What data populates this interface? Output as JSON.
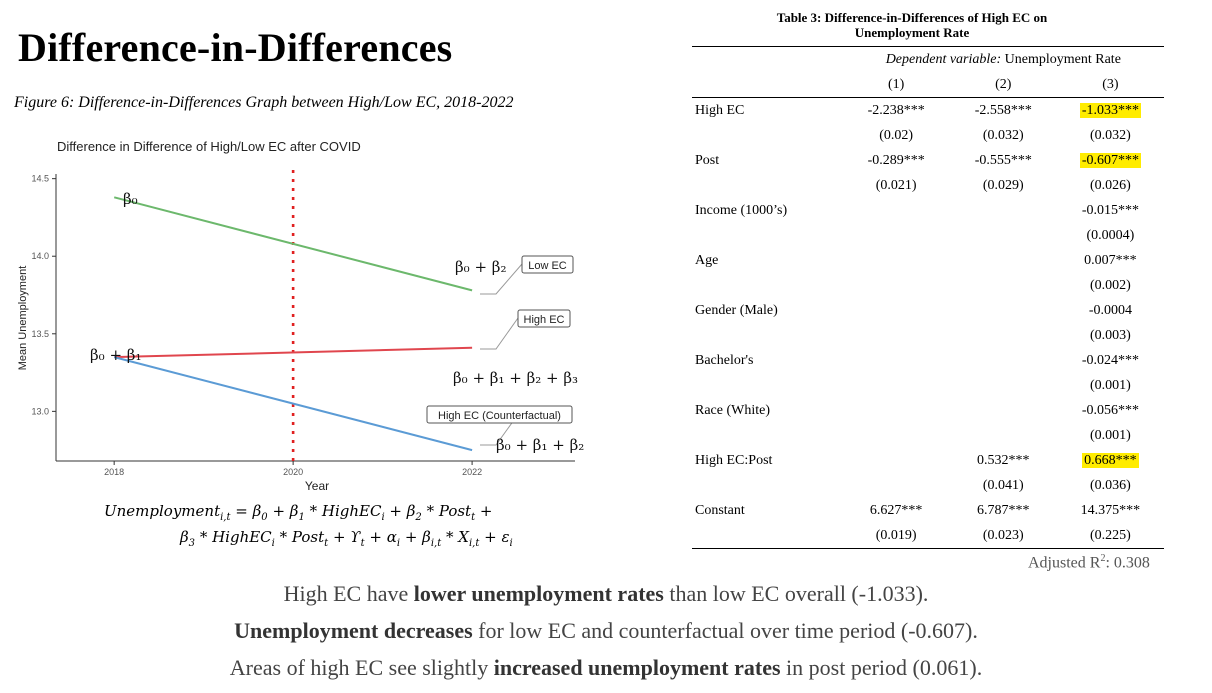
{
  "slide": {
    "title": "Difference-in-Differences",
    "figure_caption": "Figure 6: Difference-in-Differences Graph between High/Low EC, 2018-2022"
  },
  "chart_data": {
    "type": "line",
    "title": "Difference in Difference of High/Low EC after COVID",
    "xlabel": "Year",
    "ylabel": "Mean Unemployment",
    "x_ticks": [
      "2018",
      "2020",
      "2022"
    ],
    "y_ticks": [
      "13.0",
      "13.5",
      "14.0",
      "14.5"
    ],
    "xlim": [
      2017.35,
      2023.15
    ],
    "ylim": [
      12.68,
      14.53
    ],
    "grid": false,
    "series": [
      {
        "name": "Low EC",
        "color": "#6cb86c",
        "x": [
          2018,
          2022
        ],
        "y": [
          14.38,
          13.78
        ]
      },
      {
        "name": "High EC",
        "color": "#e0464e",
        "x": [
          2018,
          2022
        ],
        "y": [
          13.35,
          13.41
        ]
      },
      {
        "name": "High EC (Counterfactual)",
        "color": "#5b9bd5",
        "x": [
          2018,
          2022
        ],
        "y": [
          13.35,
          12.75
        ]
      }
    ],
    "vline": {
      "x": 2020,
      "color": "#e02020",
      "style": "dotted"
    },
    "annotations": {
      "beta0": "β₀",
      "beta0_beta1": "β₀ +  β₁",
      "beta0_beta2": "β₀ +  β₂",
      "beta0_beta1_beta2_beta3": "β₀ + β₁ +  β₂ + β₃",
      "beta0_beta1_beta2": "β₀ + β₁ +  β₂"
    }
  },
  "equation": {
    "line1": [
      {
        "t": "Unemployment"
      },
      {
        "s": "i,t"
      },
      {
        "t": " = β"
      },
      {
        "s": "0"
      },
      {
        "t": " + β"
      },
      {
        "s": "1"
      },
      {
        "t": " * HighEC"
      },
      {
        "s": "i"
      },
      {
        "t": "  + β"
      },
      {
        "s": "2"
      },
      {
        "t": " * Post"
      },
      {
        "s": "t"
      },
      {
        "t": " +"
      }
    ],
    "line2": [
      {
        "t": "β"
      },
      {
        "s": "3"
      },
      {
        "t": " *  HighEC"
      },
      {
        "s": "i"
      },
      {
        "t": " * Post"
      },
      {
        "s": "t"
      },
      {
        "t": " + ϒ"
      },
      {
        "s": "t"
      },
      {
        "t": " + α"
      },
      {
        "s": "i"
      },
      {
        "t": " + β"
      },
      {
        "s": "i,t"
      },
      {
        "t": " * X"
      },
      {
        "s": "i,t"
      },
      {
        "t": " + ε"
      },
      {
        "s": "i"
      }
    ]
  },
  "regression_table": {
    "title_line1": "Table 3: Difference-in-Differences of High EC on",
    "title_line2": "Unemployment Rate",
    "dep_var_prefix": "Dependent variable:",
    "dep_var_name": " Unemployment Rate",
    "columns": [
      "(1)",
      "(2)",
      "(3)"
    ],
    "rows": [
      {
        "label": "High EC",
        "values": [
          "-2.238***",
          "-2.558***",
          "-1.033***"
        ],
        "highlight": [
          false,
          false,
          true
        ]
      },
      {
        "label": "",
        "values": [
          "(0.02)",
          "(0.032)",
          "(0.032)"
        ],
        "highlight": [
          false,
          false,
          false
        ]
      },
      {
        "label": "Post",
        "values": [
          "-0.289***",
          "-0.555***",
          "-0.607***"
        ],
        "highlight": [
          false,
          false,
          true
        ]
      },
      {
        "label": "",
        "values": [
          "(0.021)",
          "(0.029)",
          "(0.026)"
        ],
        "highlight": [
          false,
          false,
          false
        ]
      },
      {
        "label": "Income (1000’s)",
        "values": [
          "",
          "",
          "-0.015***"
        ],
        "highlight": [
          false,
          false,
          false
        ]
      },
      {
        "label": "",
        "values": [
          "",
          "",
          "(0.0004)"
        ],
        "highlight": [
          false,
          false,
          false
        ]
      },
      {
        "label": "Age",
        "values": [
          "",
          "",
          "0.007***"
        ],
        "highlight": [
          false,
          false,
          false
        ]
      },
      {
        "label": "",
        "values": [
          "",
          "",
          "(0.002)"
        ],
        "highlight": [
          false,
          false,
          false
        ]
      },
      {
        "label": "Gender (Male)",
        "values": [
          "",
          "",
          "-0.0004"
        ],
        "highlight": [
          false,
          false,
          false
        ]
      },
      {
        "label": "",
        "values": [
          "",
          "",
          "(0.003)"
        ],
        "highlight": [
          false,
          false,
          false
        ]
      },
      {
        "label": "Bachelor's",
        "values": [
          "",
          "",
          "-0.024***"
        ],
        "highlight": [
          false,
          false,
          false
        ]
      },
      {
        "label": "",
        "values": [
          "",
          "",
          "(0.001)"
        ],
        "highlight": [
          false,
          false,
          false
        ]
      },
      {
        "label": "Race (White)",
        "values": [
          "",
          "",
          "-0.056***"
        ],
        "highlight": [
          false,
          false,
          false
        ]
      },
      {
        "label": "",
        "values": [
          "",
          "",
          "(0.001)"
        ],
        "highlight": [
          false,
          false,
          false
        ]
      },
      {
        "label": "High EC:Post",
        "values": [
          "",
          "0.532***",
          "0.668***"
        ],
        "highlight": [
          false,
          false,
          true
        ]
      },
      {
        "label": "",
        "values": [
          "",
          "(0.041)",
          "(0.036)"
        ],
        "highlight": [
          false,
          false,
          false
        ]
      },
      {
        "label": "Constant",
        "values": [
          "6.627***",
          "6.787***",
          "14.375***"
        ],
        "highlight": [
          false,
          false,
          false
        ]
      },
      {
        "label": "",
        "values": [
          "(0.019)",
          "(0.023)",
          "(0.225)"
        ],
        "highlight": [
          false,
          false,
          false
        ]
      }
    ],
    "adj_r2_prefix": "Adjusted R",
    "adj_r2_sup": "2",
    "adj_r2_value": ": 0.308",
    "highlight_color": "#ffec00"
  },
  "findings": [
    [
      {
        "t": "High EC have "
      },
      {
        "b": "lower unemployment rates"
      },
      {
        "t": " than low EC overall (-1.033)."
      }
    ],
    [
      {
        "b": "Unemployment decreases"
      },
      {
        "t": " for low EC and counterfactual over time period (-0.607)."
      }
    ],
    [
      {
        "t": "Areas of high EC see slightly "
      },
      {
        "b": "increased unemployment rates"
      },
      {
        "t": " in post period (0.061)."
      }
    ]
  ]
}
